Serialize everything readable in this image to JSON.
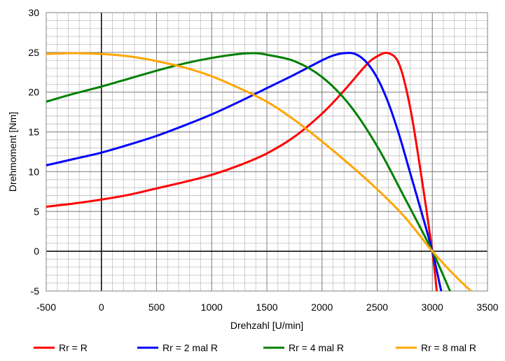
{
  "chart_data": {
    "type": "line",
    "title": "",
    "xlabel": "Drehzahl [U/min]",
    "ylabel": "Drehmoment [Nm]",
    "xlim": [
      -500,
      3500
    ],
    "ylim": [
      -5,
      30
    ],
    "x_ticks": [
      -500,
      0,
      500,
      1000,
      1500,
      2000,
      2500,
      3000,
      3500
    ],
    "y_ticks": [
      -5,
      0,
      5,
      10,
      15,
      20,
      25,
      30
    ],
    "minor_x_step": 100,
    "minor_y_step": 1,
    "grid": true,
    "legend_position": "bottom",
    "series": [
      {
        "name": "Rr = R",
        "color": "#ff0000",
        "x": [
          -500,
          -250,
          0,
          250,
          500,
          750,
          1000,
          1250,
          1500,
          1750,
          2000,
          2200,
          2400,
          2500,
          2600,
          2700,
          2800,
          2900,
          3000,
          3040
        ],
        "y": [
          5.6,
          6.0,
          6.5,
          7.1,
          7.9,
          8.7,
          9.6,
          10.8,
          12.3,
          14.4,
          17.3,
          20.2,
          23.4,
          24.5,
          24.9,
          23.5,
          18.0,
          9.5,
          0,
          -5
        ]
      },
      {
        "name": "Rr = 2 mal R",
        "color": "#0000ff",
        "x": [
          -500,
          -250,
          0,
          250,
          500,
          750,
          1000,
          1250,
          1500,
          1750,
          2000,
          2100,
          2200,
          2300,
          2400,
          2500,
          2600,
          2700,
          2800,
          2900,
          3000,
          3080
        ],
        "y": [
          10.8,
          11.6,
          12.4,
          13.4,
          14.5,
          15.8,
          17.2,
          18.8,
          20.5,
          22.2,
          24.0,
          24.6,
          24.9,
          24.8,
          23.8,
          21.8,
          18.7,
          14.6,
          9.8,
          5.0,
          0,
          -5
        ]
      },
      {
        "name": "Rr = 4 mal R",
        "color": "#008000",
        "x": [
          -500,
          -250,
          0,
          250,
          500,
          750,
          1000,
          1250,
          1400,
          1500,
          1750,
          2000,
          2250,
          2500,
          2750,
          3000,
          3160
        ],
        "y": [
          18.8,
          19.8,
          20.7,
          21.7,
          22.7,
          23.6,
          24.3,
          24.8,
          24.9,
          24.7,
          23.9,
          21.9,
          18.4,
          13.2,
          6.7,
          0,
          -5
        ]
      },
      {
        "name": "Rr = 8 mal R",
        "color": "#ffa500",
        "x": [
          -500,
          -250,
          0,
          250,
          500,
          750,
          1000,
          1250,
          1500,
          1750,
          2000,
          2250,
          2500,
          2750,
          3000,
          3200,
          3350
        ],
        "y": [
          24.8,
          24.9,
          24.8,
          24.5,
          23.9,
          23.1,
          22.0,
          20.5,
          18.8,
          16.5,
          13.8,
          10.9,
          7.8,
          4.3,
          0,
          -3,
          -5
        ]
      }
    ]
  }
}
